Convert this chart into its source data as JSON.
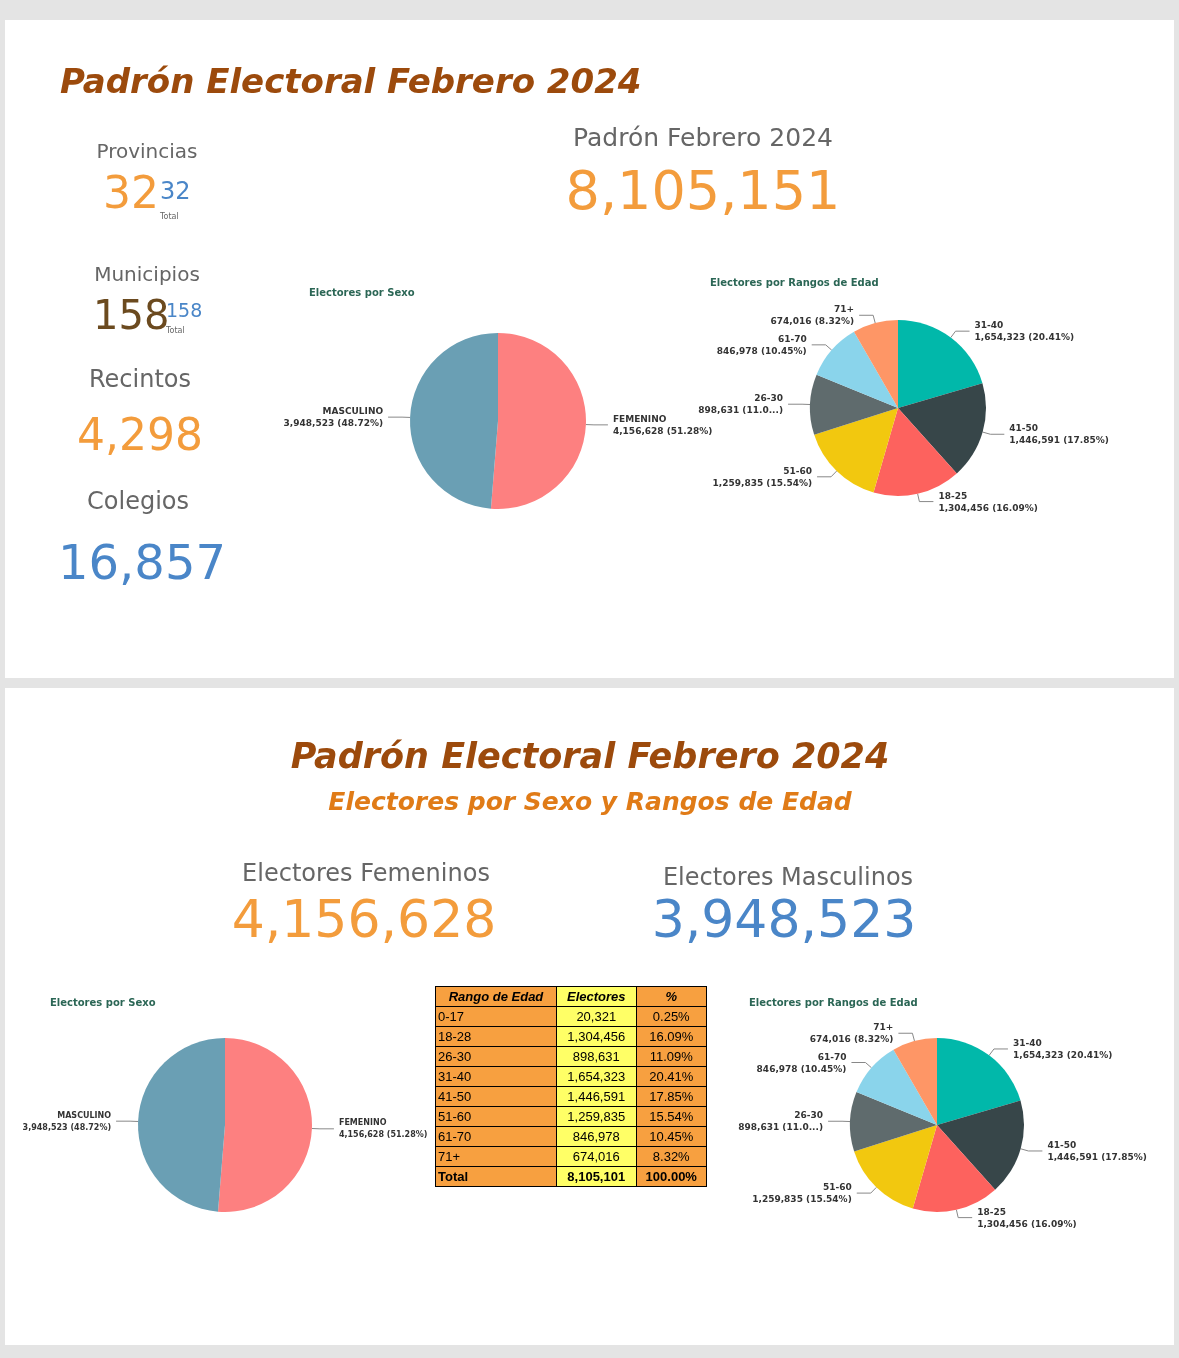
{
  "chart_data": [
    {
      "type": "other",
      "title": "Padrón Electoral Febrero 2024",
      "annotations": [
        "Provincias",
        "32",
        "32",
        "Total",
        "Municipios",
        "158",
        "158",
        "Total",
        "Recintos",
        "4,298",
        "Colegios",
        "16,857",
        "Padrón Febrero 2024",
        "8,105,151"
      ]
    },
    {
      "type": "pie",
      "title": "Electores por Sexo",
      "categories": [
        "FEMENINO",
        "MASCULINO"
      ],
      "values": [
        4156628,
        3948523
      ],
      "colors": [
        "#fd8080",
        "#6a9fb4"
      ],
      "value_labels": [
        "4,156,628 (51.28%)",
        "3,948,523 (48.72%)"
      ]
    },
    {
      "type": "pie",
      "title": "Electores por Rangos de Edad",
      "categories": [
        "31-40",
        "41-50",
        "18-25",
        "51-60",
        "26-30",
        "61-70",
        "71+"
      ],
      "values": [
        1654323,
        1446591,
        1304456,
        1259835,
        898631,
        846978,
        674016
      ],
      "colors": [
        "#01b8aa",
        "#374649",
        "#fd625e",
        "#f2c80f",
        "#5f6b6d",
        "#8ad4eb",
        "#fe9666"
      ],
      "value_labels": [
        "1,654,323 (20.41%)",
        "1,446,591 (17.85%)",
        "1,304,456 (16.09%)",
        "1,259,835 (15.54%)",
        "898,631 (11.0...)",
        "846,978 (10.45%)",
        "674,016 (8.32%)"
      ]
    },
    {
      "type": "other",
      "title": "Padrón Electoral Febrero 2024",
      "subtitle": "Electores por Sexo y Rangos de Edad",
      "annotations": [
        "Electores Femeninos",
        "4,156,628",
        "Electores Masculinos",
        "3,948,523"
      ]
    },
    {
      "type": "pie",
      "title": "Electores por Sexo",
      "categories": [
        "FEMENINO",
        "MASCULINO"
      ],
      "values": [
        4156628,
        3948523
      ],
      "colors": [
        "#fd8080",
        "#6a9fb4"
      ],
      "value_labels": [
        "4,156,628 (51.28%)",
        "3,948,523 (48.72%)"
      ]
    },
    {
      "type": "other",
      "ylabel": "Rango de Edad",
      "categories": [
        "Electores",
        "%"
      ],
      "y_categories": [
        "0-17",
        "18-28",
        "26-30",
        "31-40",
        "41-50",
        "51-60",
        "61-70",
        "71+",
        "Total"
      ],
      "cell_labels": [
        [
          "20,321",
          "0.25%"
        ],
        [
          "1,304,456",
          "16.09%"
        ],
        [
          "898,631",
          "11.09%"
        ],
        [
          "1,654,323",
          "20.41%"
        ],
        [
          "1,446,591",
          "17.85%"
        ],
        [
          "1,259,835",
          "15.54%"
        ],
        [
          "846,978",
          "10.45%"
        ],
        [
          "674,016",
          "8.32%"
        ],
        [
          "8,105,101",
          "100.00%"
        ]
      ]
    },
    {
      "type": "pie",
      "title": "Electores por Rangos de Edad",
      "categories": [
        "31-40",
        "41-50",
        "18-25",
        "51-60",
        "26-30",
        "61-70",
        "71+"
      ],
      "values": [
        1654323,
        1446591,
        1304456,
        1259835,
        898631,
        846978,
        674016
      ],
      "colors": [
        "#01b8aa",
        "#374649",
        "#fd625e",
        "#f2c80f",
        "#5f6b6d",
        "#8ad4eb",
        "#fe9666"
      ],
      "value_labels": [
        "1,654,323 (20.41%)",
        "1,446,591 (17.85%)",
        "1,304,456 (16.09%)",
        "1,259,835 (15.54%)",
        "898,631 (11.0...)",
        "846,978 (10.45%)",
        "674,016 (8.32%)"
      ]
    }
  ]
}
